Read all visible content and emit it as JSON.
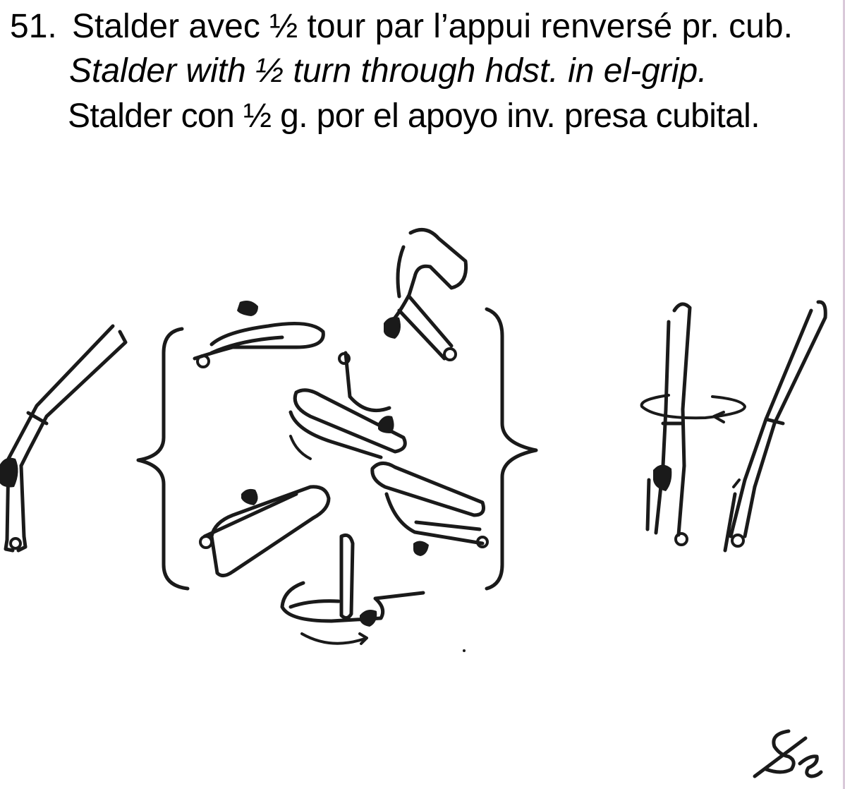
{
  "element": {
    "number": "51.",
    "french": "Stalder avec ½ tour par l’appui renversé pr. cub.",
    "english": "Stalder with ½ turn through hdst. in el-grip.",
    "spanish": "Stalder con ½ g. por el apoyo inv. presa cubital."
  },
  "signature": "Se"
}
